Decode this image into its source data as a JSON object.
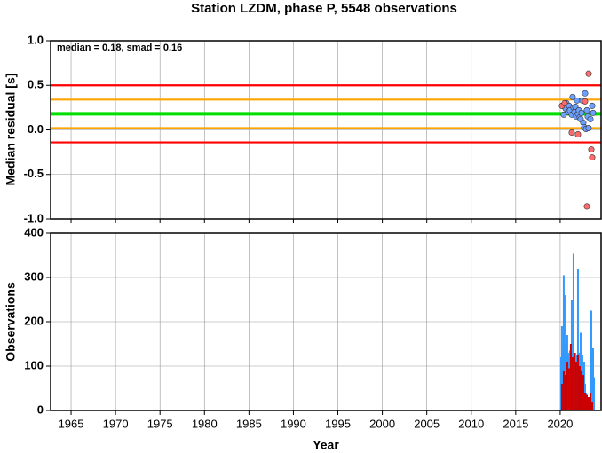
{
  "chart_data": [
    {
      "type": "scatter",
      "title": "Station LZDM, phase P, 5548 observations",
      "annotation": "median = 0.18, smad = 0.16",
      "ylabel": "Median residual [s]",
      "xlim": [
        1962.7,
        2024.6
      ],
      "ylim": [
        -1,
        1
      ],
      "yticks": [
        {
          "value": -1,
          "label": "-1.0"
        },
        -0.5,
        {
          "value": 0,
          "label": "0.0"
        },
        0.5,
        {
          "value": 1,
          "label": "1.0"
        }
      ],
      "grid": true,
      "reference_lines": [
        {
          "value": 0.5,
          "color": "#ff0000"
        },
        {
          "value": 0.34,
          "color": "#ffa500"
        },
        {
          "value": 0.18,
          "color": "#00e000"
        },
        {
          "value": 0.02,
          "color": "#ffa500"
        },
        {
          "value": -0.14,
          "color": "#ff0000"
        }
      ],
      "series": [
        {
          "color": "#6ea0ff",
          "x": [
            2020.4,
            2020.6,
            2020.7,
            2020.9,
            2021.0,
            2021.1,
            2021.3,
            2021.4,
            2021.5,
            2021.6,
            2021.7,
            2021.8,
            2021.9,
            2022.0,
            2022.1,
            2022.2,
            2022.3,
            2022.4,
            2022.5,
            2022.6,
            2022.7,
            2022.8,
            2022.9,
            2023.0,
            2023.1,
            2023.2,
            2023.4,
            2023.6,
            2023.7
          ],
          "values": [
            0.17,
            0.24,
            0.3,
            0.2,
            0.27,
            0.22,
            0.17,
            0.37,
            0.25,
            0.2,
            0.26,
            0.15,
            0.33,
            0.18,
            0.22,
            0.14,
            0.12,
            0.19,
            0.33,
            0.08,
            0.03,
            0.41,
            0.01,
            0.22,
            0.15,
            0.02,
            0.12,
            0.27,
            0.19
          ]
        },
        {
          "color": "#ff6b6b",
          "x": [
            2020.2,
            2020.5,
            2021.3,
            2022.0,
            2022.8,
            2023.2,
            2023.0,
            2023.5,
            2023.6
          ],
          "values": [
            0.27,
            0.3,
            -0.03,
            -0.05,
            0.32,
            0.63,
            -0.86,
            -0.22,
            -0.31
          ]
        }
      ]
    },
    {
      "type": "bar",
      "ylabel": "Observations",
      "xlabel": "Year",
      "xlim": [
        1962.7,
        2024.6
      ],
      "xticks": [
        1965,
        1970,
        1975,
        1980,
        1985,
        1990,
        1995,
        2000,
        2005,
        2010,
        2015,
        2020
      ],
      "ylim": [
        0,
        400
      ],
      "yticks": [
        0,
        100,
        200,
        300,
        400
      ],
      "grid": true,
      "series": [
        {
          "color": "#3399ff",
          "x": [
            2020.1,
            2020.2,
            2020.3,
            2020.4,
            2020.5,
            2020.6,
            2020.7,
            2020.8,
            2020.9,
            2021.0,
            2021.1,
            2021.2,
            2021.3,
            2021.4,
            2021.5,
            2021.6,
            2021.7,
            2021.8,
            2021.9,
            2022.0,
            2022.1,
            2022.2,
            2022.3,
            2022.4,
            2022.5,
            2022.6,
            2022.7,
            2022.8,
            2022.9,
            2023.0,
            2023.1,
            2023.2,
            2023.3,
            2023.5,
            2023.6,
            2023.7,
            2023.8
          ],
          "values": [
            120,
            190,
            130,
            305,
            260,
            150,
            110,
            170,
            130,
            120,
            135,
            140,
            250,
            130,
            355,
            120,
            130,
            100,
            125,
            320,
            115,
            130,
            175,
            110,
            125,
            90,
            110,
            60,
            40,
            30,
            20,
            15,
            10,
            225,
            130,
            140,
            75
          ]
        },
        {
          "color": "#cc0000",
          "x": [
            2020.2,
            2020.4,
            2020.6,
            2020.8,
            2021.0,
            2021.2,
            2021.4,
            2021.6,
            2021.8,
            2022.0,
            2022.2,
            2022.4,
            2022.6,
            2022.8,
            2023.0,
            2023.2,
            2023.4,
            2023.6
          ],
          "values": [
            60,
            90,
            80,
            110,
            95,
            150,
            120,
            130,
            110,
            125,
            100,
            90,
            80,
            40,
            35,
            30,
            40,
            20
          ]
        }
      ]
    }
  ]
}
